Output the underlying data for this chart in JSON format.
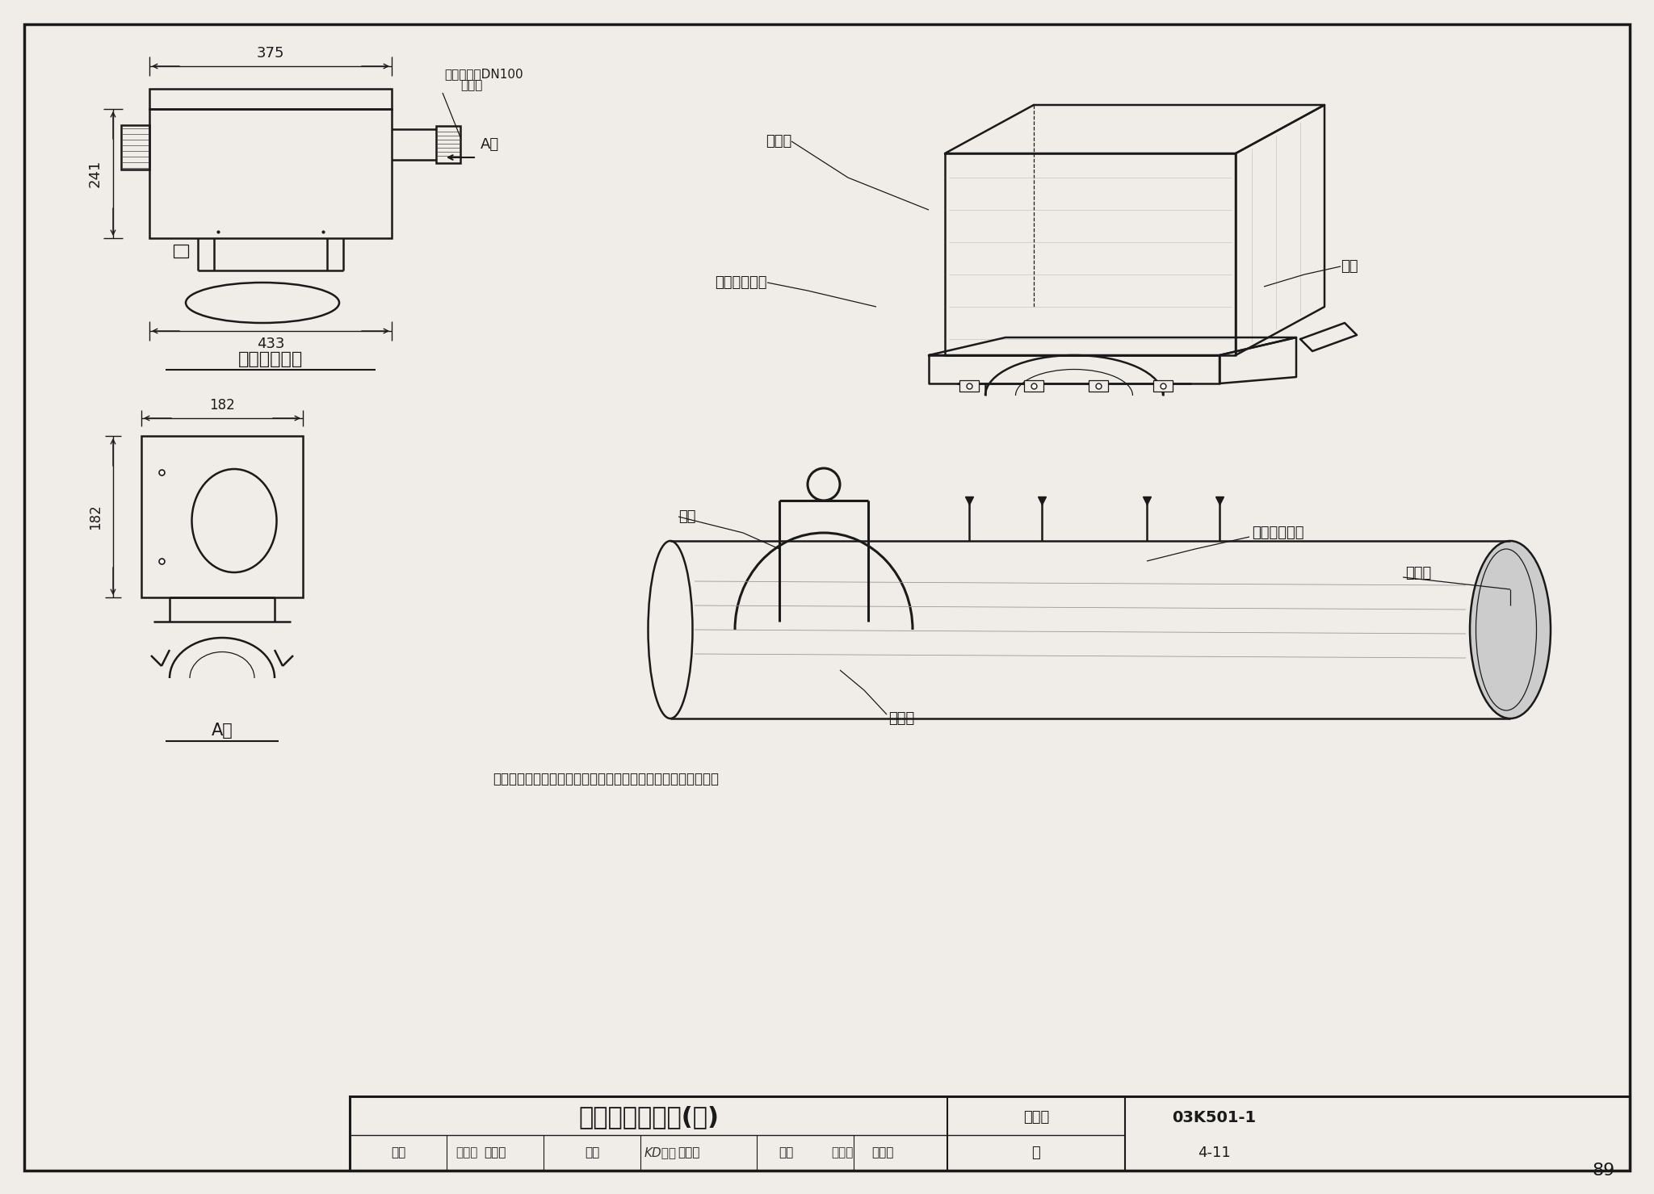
{
  "bg_color": "#f0ede8",
  "line_color": "#1a1a1a",
  "title_main": "发生器及其安装(三)",
  "atlas_no_label": "图集号",
  "atlas_no_value": "03K501-1",
  "page_label": "页",
  "page_value": "4-11",
  "page_num": "89",
  "review_label": "审核",
  "review_name": "胡宁宁",
  "check_label": "校对",
  "check_name": "白小步",
  "design_label": "设计",
  "design_name": "戴海洋",
  "dim_375": "375",
  "dim_241": "241",
  "dim_433": "433",
  "dim_182w": "182",
  "dim_182h": "182",
  "label_plan": "发生器平面图",
  "label_A_view": "A向",
  "label_air_line1": "供空气接头DN100",
  "label_air_line2": "管螺纹",
  "label_generator": "发生器",
  "label_fix_plate": "发生器固定板",
  "label_shim": "垫片",
  "label_hanger": "吸架",
  "label_install_hole": "发生器安装孔",
  "label_rad_tube": "辐射管",
  "label_fix_bolt": "固定栓",
  "note_line1": "注：本图根据青岛森普热能有限公司青岛办事处提供资料编制。"
}
